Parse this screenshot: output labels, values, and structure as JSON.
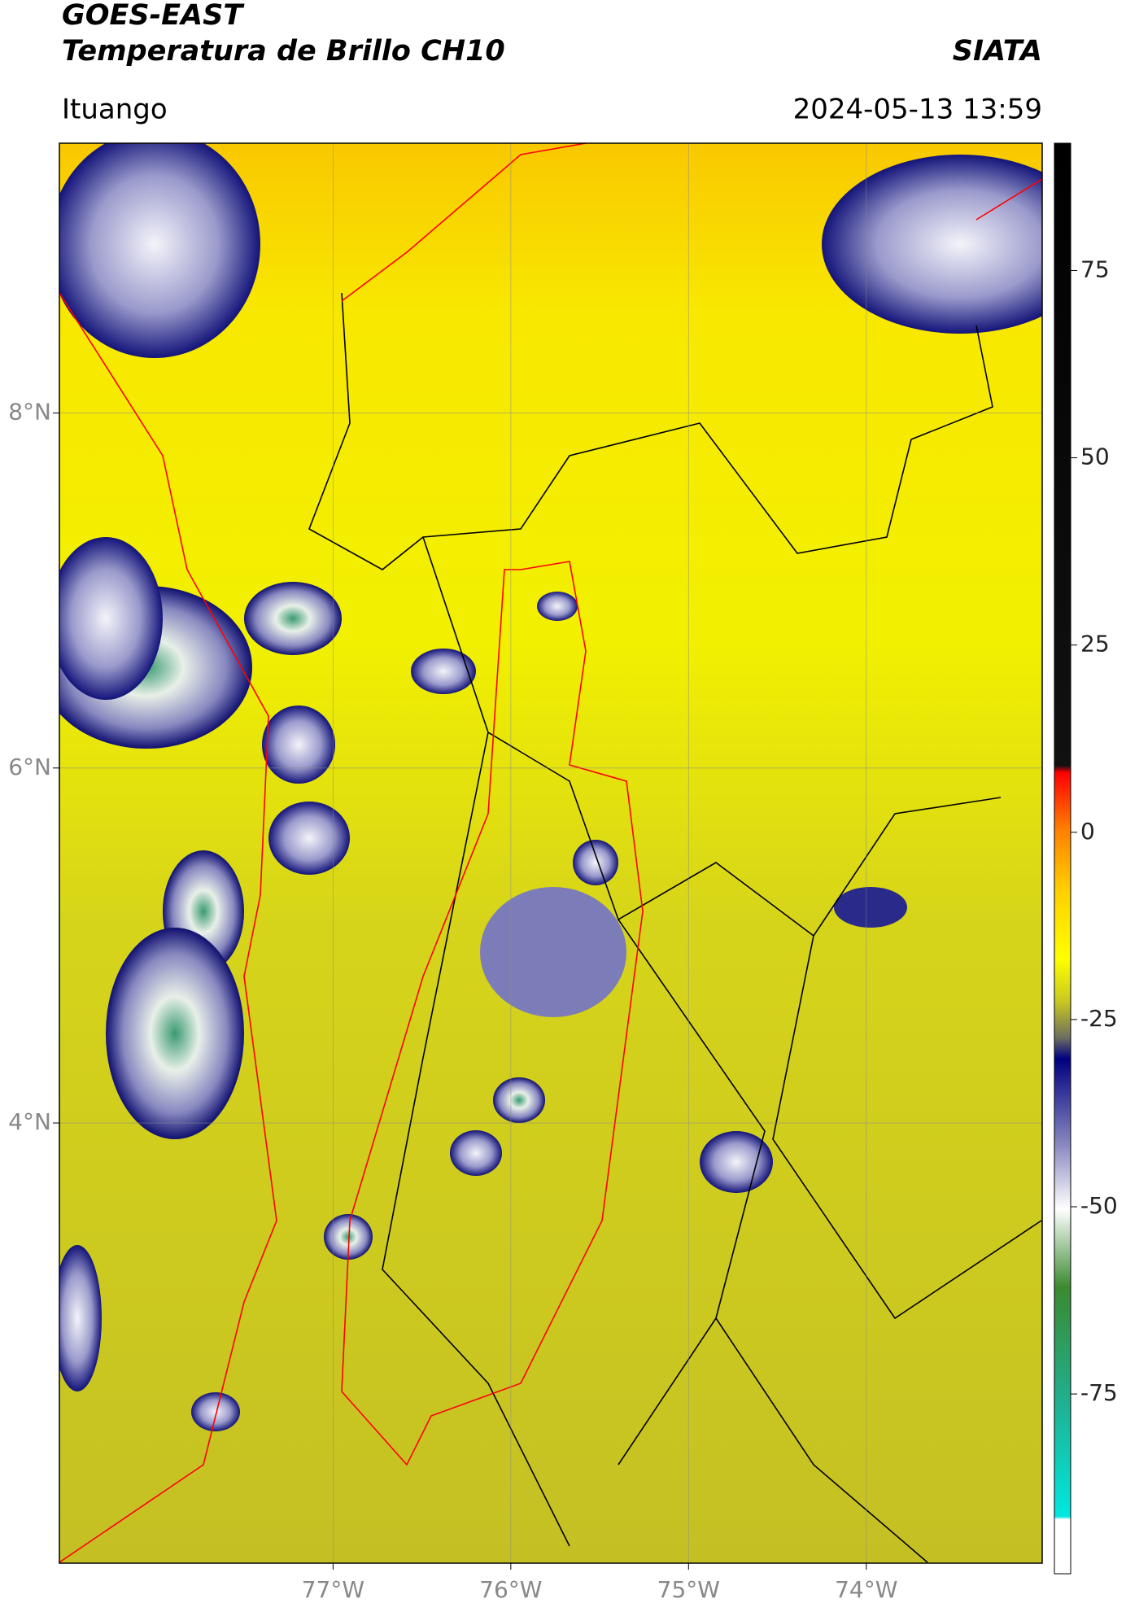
{
  "header": {
    "title": "GOES-EAST",
    "subtitle": "Temperatura de Brillo CH10",
    "brand": "SIATA",
    "location": "Ituango",
    "timestamp": "2024-05-13 13:59"
  },
  "map": {
    "xlim": [
      -78.54,
      -73.01
    ],
    "ylim": [
      1.52,
      9.52
    ],
    "xticks": [
      {
        "value": -77,
        "label": "77°W"
      },
      {
        "value": -76,
        "label": "76°W"
      },
      {
        "value": -75,
        "label": "75°W"
      },
      {
        "value": -74,
        "label": "74°W"
      }
    ],
    "yticks": [
      {
        "value": 8,
        "label": "8°N"
      },
      {
        "value": 6,
        "label": "6°N"
      },
      {
        "value": 4,
        "label": "4°N"
      }
    ],
    "grid": true
  },
  "colorbar": {
    "clim": [
      -99,
      92
    ],
    "ticks": [
      75,
      50,
      25,
      0,
      -25,
      -50,
      -75
    ]
  }
}
